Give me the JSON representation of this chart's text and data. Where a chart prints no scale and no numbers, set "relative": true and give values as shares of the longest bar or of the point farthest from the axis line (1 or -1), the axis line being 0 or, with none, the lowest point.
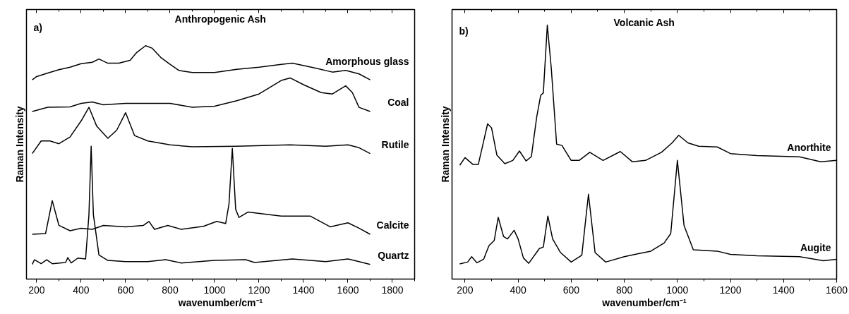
{
  "chart_data": [
    {
      "type": "line",
      "relative": true,
      "title": "Anthropogenic Ash",
      "xlabel": "wavenumber/cm⁻¹",
      "ylabel": "Raman Intensity",
      "annotations": [
        "a)"
      ],
      "xlim": [
        154,
        1900
      ],
      "xticks": [
        200,
        400,
        600,
        800,
        1000,
        1200,
        1400,
        1600,
        1800
      ],
      "series": [
        {
          "name": "Amorphous glass",
          "color": "#000000",
          "x": [
            180,
            200,
            250,
            300,
            350,
            400,
            450,
            480,
            520,
            570,
            620,
            650,
            690,
            720,
            760,
            800,
            840,
            900,
            1000,
            1100,
            1200,
            1300,
            1350,
            1450,
            1530,
            1590,
            1650,
            1700
          ],
          "values": [
            0.854,
            0.868,
            0.883,
            0.897,
            0.908,
            0.923,
            0.929,
            0.943,
            0.925,
            0.925,
            0.937,
            0.971,
            1.0,
            0.989,
            0.948,
            0.92,
            0.894,
            0.885,
            0.885,
            0.899,
            0.908,
            0.92,
            0.925,
            0.905,
            0.887,
            0.894,
            0.879,
            0.854
          ]
        },
        {
          "name": "Coal",
          "color": "#000000",
          "x": [
            180,
            250,
            350,
            400,
            450,
            500,
            600,
            700,
            800,
            900,
            1000,
            1100,
            1200,
            1300,
            1340,
            1400,
            1480,
            1530,
            1590,
            1620,
            1650,
            1700
          ],
          "values": [
            0.718,
            0.736,
            0.738,
            0.753,
            0.759,
            0.747,
            0.753,
            0.753,
            0.753,
            0.736,
            0.741,
            0.764,
            0.793,
            0.851,
            0.862,
            0.833,
            0.799,
            0.793,
            0.828,
            0.799,
            0.736,
            0.718
          ]
        },
        {
          "name": "Rutile",
          "color": "#000000",
          "x": [
            180,
            220,
            260,
            300,
            350,
            400,
            435,
            470,
            520,
            560,
            600,
            640,
            700,
            800,
            900,
            1100,
            1340,
            1500,
            1600,
            1650,
            1700
          ],
          "values": [
            0.538,
            0.592,
            0.592,
            0.58,
            0.609,
            0.678,
            0.736,
            0.655,
            0.603,
            0.638,
            0.713,
            0.615,
            0.592,
            0.575,
            0.567,
            0.569,
            0.575,
            0.569,
            0.575,
            0.563,
            0.538
          ]
        },
        {
          "name": "Calcite",
          "color": "#000000",
          "x": [
            180,
            240,
            270,
            300,
            350,
            400,
            450,
            500,
            600,
            680,
            705,
            730,
            790,
            850,
            950,
            1010,
            1050,
            1065,
            1080,
            1095,
            1110,
            1150,
            1300,
            1430,
            1520,
            1600,
            1650,
            1700
          ],
          "values": [
            0.192,
            0.195,
            0.336,
            0.23,
            0.207,
            0.218,
            0.213,
            0.23,
            0.224,
            0.23,
            0.247,
            0.213,
            0.23,
            0.213,
            0.226,
            0.247,
            0.238,
            0.322,
            0.56,
            0.299,
            0.264,
            0.287,
            0.27,
            0.27,
            0.224,
            0.241,
            0.218,
            0.192
          ]
        },
        {
          "name": "Quartz",
          "color": "#000000",
          "x": [
            180,
            190,
            220,
            245,
            270,
            330,
            340,
            355,
            385,
            420,
            435,
            445,
            455,
            480,
            520,
            600,
            700,
            780,
            850,
            1000,
            1140,
            1180,
            1350,
            1500,
            1600,
            1650,
            1700
          ],
          "values": [
            0.063,
            0.083,
            0.066,
            0.083,
            0.066,
            0.071,
            0.092,
            0.069,
            0.09,
            0.086,
            0.276,
            0.569,
            0.276,
            0.103,
            0.08,
            0.075,
            0.075,
            0.083,
            0.069,
            0.08,
            0.083,
            0.071,
            0.086,
            0.075,
            0.086,
            0.075,
            0.063
          ]
        }
      ]
    },
    {
      "type": "line",
      "relative": true,
      "title": "Volcanic Ash",
      "xlabel": "wavenumber/cm⁻¹",
      "ylabel": "Raman Intensity",
      "annotations": [
        "b)"
      ],
      "xlim": [
        151,
        1600
      ],
      "xticks": [
        200,
        400,
        600,
        800,
        1000,
        1200,
        1400,
        1600
      ],
      "series": [
        {
          "name": "Anorthite",
          "color": "#000000",
          "x": [
            180,
            200,
            230,
            250,
            270,
            285,
            300,
            320,
            350,
            380,
            405,
            430,
            450,
            470,
            485,
            495,
            510,
            525,
            545,
            565,
            600,
            630,
            670,
            720,
            785,
            830,
            880,
            940,
            980,
            1005,
            1040,
            1080,
            1150,
            1200,
            1300,
            1460,
            1540,
            1600
          ],
          "values": [
            0.448,
            0.478,
            0.451,
            0.451,
            0.542,
            0.611,
            0.595,
            0.488,
            0.454,
            0.467,
            0.504,
            0.465,
            0.482,
            0.638,
            0.723,
            0.733,
            1.0,
            0.829,
            0.531,
            0.526,
            0.467,
            0.467,
            0.499,
            0.467,
            0.502,
            0.462,
            0.467,
            0.499,
            0.536,
            0.566,
            0.536,
            0.523,
            0.52,
            0.494,
            0.486,
            0.481,
            0.462,
            0.467
          ]
        },
        {
          "name": "Augite",
          "color": "#000000",
          "x": [
            180,
            210,
            225,
            245,
            270,
            290,
            310,
            325,
            345,
            360,
            385,
            400,
            420,
            440,
            480,
            495,
            512,
            530,
            560,
            600,
            640,
            665,
            690,
            730,
            800,
            850,
            900,
            950,
            975,
            1000,
            1025,
            1060,
            1150,
            1200,
            1300,
            1460,
            1550,
            1600
          ],
          "values": [
            0.06,
            0.067,
            0.088,
            0.064,
            0.078,
            0.131,
            0.152,
            0.243,
            0.168,
            0.158,
            0.192,
            0.158,
            0.083,
            0.062,
            0.12,
            0.126,
            0.248,
            0.158,
            0.104,
            0.067,
            0.094,
            0.334,
            0.104,
            0.067,
            0.088,
            0.099,
            0.11,
            0.142,
            0.179,
            0.467,
            0.211,
            0.115,
            0.11,
            0.097,
            0.092,
            0.088,
            0.072,
            0.078
          ]
        }
      ]
    }
  ]
}
